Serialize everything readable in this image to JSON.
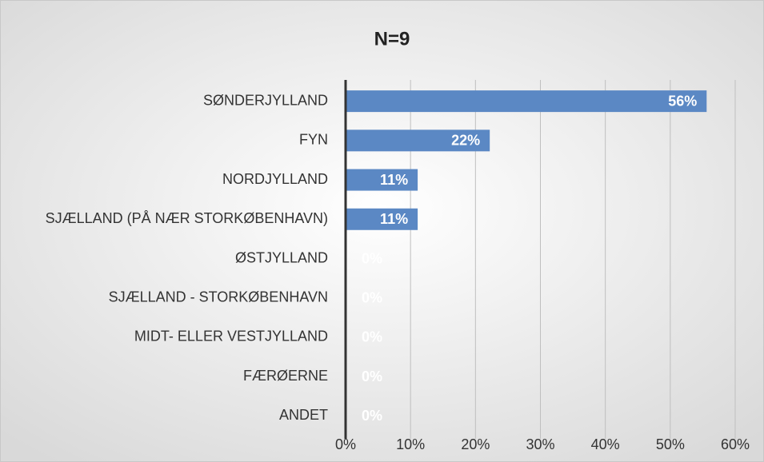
{
  "chart_data": {
    "type": "barh",
    "title": "N=9",
    "categories": [
      "SØNDERJYLLAND",
      "FYN",
      "NORDJYLLAND",
      "SJÆLLAND (PÅ NÆR STORKØBENHAVN)",
      "ØSTJYLLAND",
      "SJÆLLAND - STORKØBENHAVN",
      "MIDT- ELLER VESTJYLLAND",
      "FÆRØERNE",
      "ANDET"
    ],
    "values": [
      55.6,
      22.2,
      11.1,
      11.1,
      0,
      0,
      0,
      0,
      0
    ],
    "value_labels": [
      "56%",
      "22%",
      "11%",
      "11%",
      "0%",
      "0%",
      "0%",
      "0%",
      "0%"
    ],
    "color": "#5b88c4",
    "xlim": [
      0,
      60
    ],
    "xticks": [
      {
        "value": 0,
        "label": "0%"
      },
      {
        "value": 10,
        "label": "10%"
      },
      {
        "value": 20,
        "label": "20%"
      },
      {
        "value": 30,
        "label": "30%"
      },
      {
        "value": 40,
        "label": "40%"
      },
      {
        "value": 50,
        "label": "50%"
      },
      {
        "value": 60,
        "label": "60%"
      }
    ],
    "grid": true
  }
}
